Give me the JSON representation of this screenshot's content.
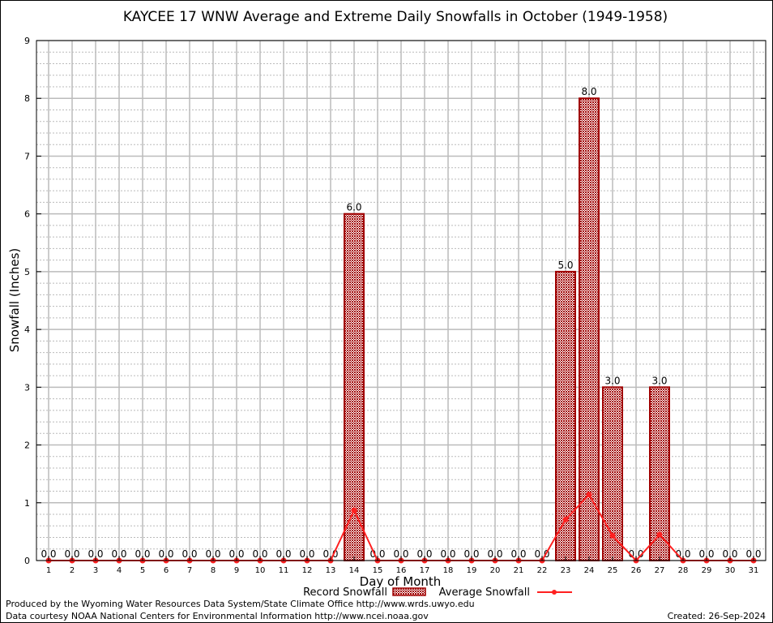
{
  "chart_data": {
    "type": "bar",
    "title": "KAYCEE 17 WNW Average and Extreme Daily Snowfalls in October (1949-1958)",
    "xlabel": "Day of Month",
    "ylabel": "Snowfall (Inches)",
    "ylim": [
      0,
      9
    ],
    "yticks": [
      "0",
      "1",
      "2",
      "3",
      "4",
      "5",
      "6",
      "7",
      "8",
      "9"
    ],
    "categories": [
      "1",
      "2",
      "3",
      "4",
      "5",
      "6",
      "7",
      "8",
      "9",
      "10",
      "11",
      "12",
      "13",
      "14",
      "15",
      "16",
      "17",
      "18",
      "19",
      "20",
      "21",
      "22",
      "23",
      "24",
      "25",
      "26",
      "27",
      "28",
      "29",
      "30",
      "31"
    ],
    "grid": true,
    "legend_placement": "bottom",
    "series": [
      {
        "name": "Record Snowfall",
        "kind": "bar",
        "color": "#a00000",
        "values": [
          0,
          0,
          0,
          0,
          0,
          0,
          0,
          0,
          0,
          0,
          0,
          0,
          0,
          6,
          0,
          0,
          0,
          0,
          0,
          0,
          0,
          0,
          5,
          8,
          3,
          0,
          3,
          0,
          0,
          0,
          0
        ],
        "labels": [
          "0.0",
          "0.0",
          "0.0",
          "0.0",
          "0.0",
          "0.0",
          "0.0",
          "0.0",
          "0.0",
          "0.0",
          "0.0",
          "0.0",
          "0.0",
          "6.0",
          "0.0",
          "0.0",
          "0.0",
          "0.0",
          "0.0",
          "0.0",
          "0.0",
          "0.0",
          "5.0",
          "8.0",
          "3.0",
          "0.0",
          "3.0",
          "0.0",
          "0.0",
          "0.0",
          "0.0"
        ]
      },
      {
        "name": "Average Snowfall",
        "kind": "line",
        "color": "#ff2020",
        "values": [
          0,
          0,
          0,
          0,
          0,
          0,
          0,
          0,
          0,
          0,
          0,
          0,
          0,
          0.87,
          0,
          0,
          0,
          0,
          0,
          0,
          0,
          0,
          0.71,
          1.14,
          0.43,
          0,
          0.45,
          0,
          0,
          0,
          0
        ]
      }
    ]
  },
  "footer": {
    "produced_by": "Produced by the Wyoming Water Resources Data System/State Climate Office http://www.wrds.uwyo.edu",
    "courtesy": "Data courtesy NOAA National Centers for Environmental Information http://www.ncei.noaa.gov",
    "created": "Created: 26-Sep-2024"
  }
}
